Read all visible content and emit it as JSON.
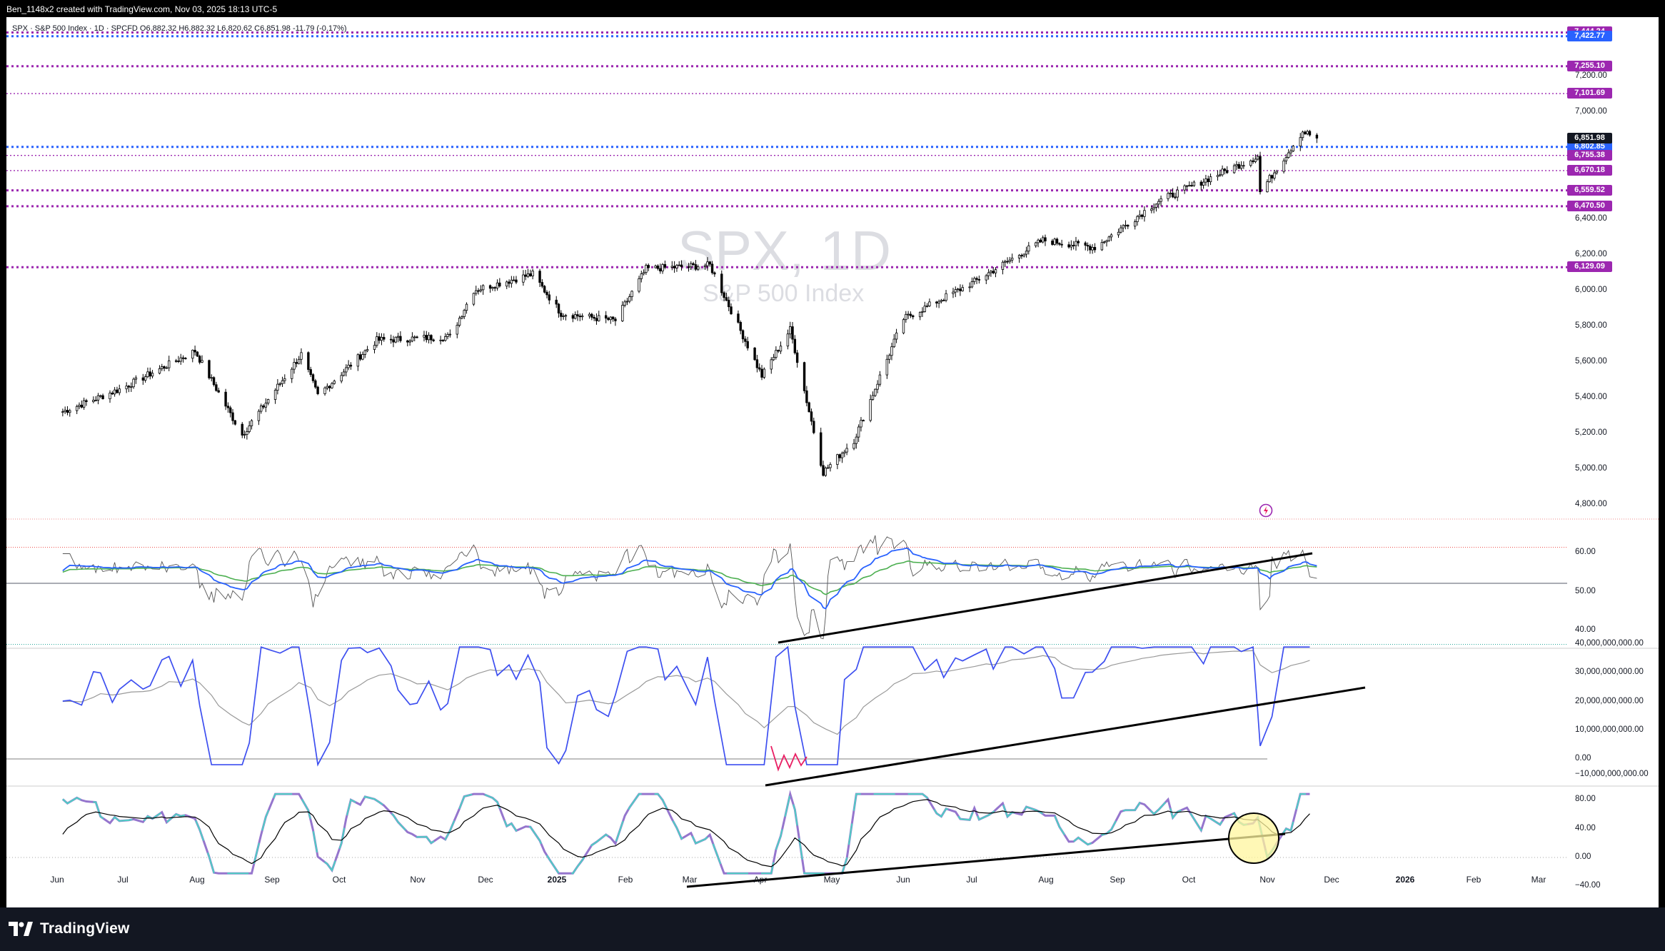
{
  "header": {
    "creator_text": "Ben_1148x2 created with TradingView.com, Nov 03, 2025 18:13 UTC-5"
  },
  "chart": {
    "legend": "SPX · S&P 500 Index · 1D · SPCFD  O6,882.32  H6,882.32  L6,820.62  C6,851.98  -11.79 (-0.17%)",
    "watermark_symbol": "SPX, 1D",
    "watermark_name": "S&P 500 Index"
  },
  "chart_data": {
    "type": "candlestick",
    "symbol": "SPX",
    "interval": "1D",
    "ohlc_last": {
      "open": 6882.32,
      "high": 6882.32,
      "low": 6820.62,
      "close": 6851.98,
      "change": -11.79,
      "change_pct": -0.17
    },
    "months": [
      "Jun",
      "Jul",
      "Aug",
      "Sep",
      "Oct",
      "Nov",
      "Dec",
      "2025",
      "Feb",
      "Mar",
      "Apr",
      "May",
      "Jun",
      "Jul",
      "Aug",
      "Sep",
      "Oct",
      "Nov",
      "Dec",
      "2026",
      "Feb",
      "Mar"
    ],
    "price_path": [
      {
        "x": "2024-05-21",
        "close": 5320
      },
      {
        "x": "2024-06-15",
        "close": 5450
      },
      {
        "x": "2024-07-16",
        "close": 5660
      },
      {
        "x": "2024-08-05",
        "close": 5190
      },
      {
        "x": "2024-08-30",
        "close": 5640
      },
      {
        "x": "2024-09-06",
        "close": 5410
      },
      {
        "x": "2024-10-01",
        "close": 5720
      },
      {
        "x": "2024-11-01",
        "close": 5740
      },
      {
        "x": "2024-11-11",
        "close": 6000
      },
      {
        "x": "2024-12-06",
        "close": 6090
      },
      {
        "x": "2024-12-18",
        "close": 5870
      },
      {
        "x": "2025-01-10",
        "close": 5830
      },
      {
        "x": "2025-01-23",
        "close": 6120
      },
      {
        "x": "2025-02-19",
        "close": 6140
      },
      {
        "x": "2025-03-13",
        "close": 5520
      },
      {
        "x": "2025-03-25",
        "close": 5780
      },
      {
        "x": "2025-04-08",
        "close": 4980
      },
      {
        "x": "2025-04-21",
        "close": 5160
      },
      {
        "x": "2025-05-12",
        "close": 5840
      },
      {
        "x": "2025-06-10",
        "close": 6040
      },
      {
        "x": "2025-07-10",
        "close": 6280
      },
      {
        "x": "2025-08-01",
        "close": 6240
      },
      {
        "x": "2025-08-28",
        "close": 6500
      },
      {
        "x": "2025-10-09",
        "close": 6750
      },
      {
        "x": "2025-10-10",
        "close": 6550
      },
      {
        "x": "2025-10-28",
        "close": 6890
      },
      {
        "x": "2025-11-03",
        "close": 6852
      }
    ],
    "horizontal_levels": [
      {
        "value": 7444.24,
        "color": "#9c27b0"
      },
      {
        "value": 7422.77,
        "color": "#2962ff"
      },
      {
        "value": 7255.1,
        "color": "#9c27b0"
      },
      {
        "value": 7101.69,
        "color": "#9c27b0"
      },
      {
        "value": 6802.85,
        "color": "#2962ff"
      },
      {
        "value": 6755.38,
        "color": "#9c27b0"
      },
      {
        "value": 6670.18,
        "color": "#9c27b0"
      },
      {
        "value": 6559.52,
        "color": "#9c27b0"
      },
      {
        "value": 6470.5,
        "color": "#9c27b0"
      },
      {
        "value": 6129.09,
        "color": "#9c27b0"
      }
    ],
    "price_axis_ticks": [
      "7,200.00",
      "7,000.00",
      "6,400.00",
      "6,200.00",
      "6,000.00",
      "5,800.00",
      "5,600.00",
      "5,400.00",
      "5,200.00",
      "5,000.00",
      "4,800.00"
    ],
    "last_price_label": "6,851.98",
    "rsi_axis_ticks": [
      "60.00",
      "50.00",
      "40.00"
    ],
    "volume_axis_ticks": [
      "40,000,000,000.00",
      "30,000,000,000.00",
      "20,000,000,000.00",
      "10,000,000,000.00",
      "0.00",
      "−10,000,000,000.00"
    ],
    "osc_axis_ticks": [
      "80.00",
      "40.00",
      "0.00",
      "−40.00"
    ]
  },
  "brand": {
    "name": "TradingView",
    "logo_icon": "tradingview-logo-icon"
  },
  "colors": {
    "purple_level": "#9c27b0",
    "blue_level": "#2962ff",
    "candle": "#000000",
    "rsi_fast": "#2962ff",
    "rsi_slow": "#4caf50",
    "oscillator_up": "#4dd0c4",
    "oscillator_down": "#9575cd",
    "highlight_circle": "#fff59d"
  }
}
